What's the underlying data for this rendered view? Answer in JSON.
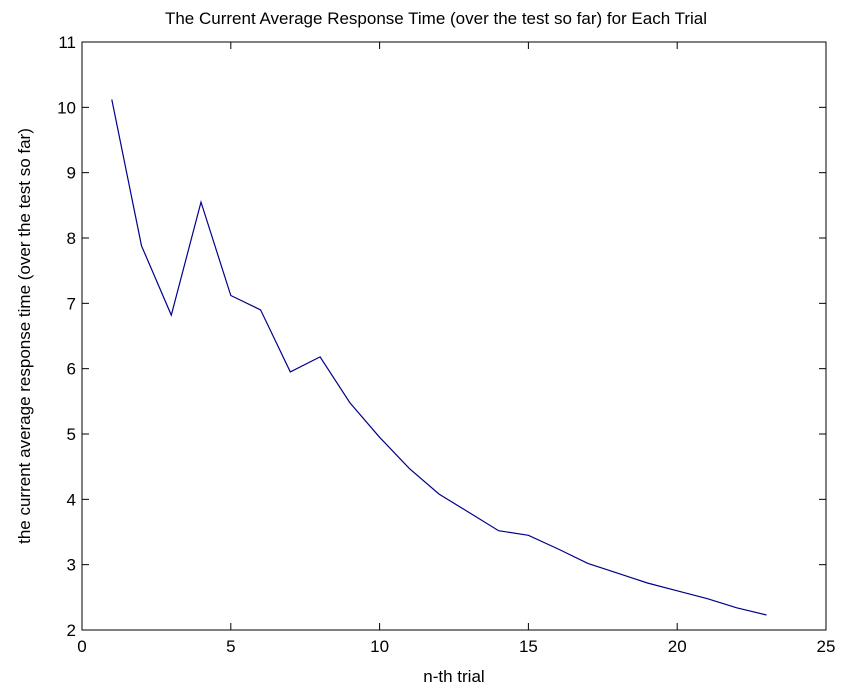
{
  "chart_data": {
    "type": "line",
    "title": "The Current Average Response Time (over the test so far) for Each Trial",
    "xlabel": "n-th trial",
    "ylabel": "the current average response time (over the test so far)",
    "xlim": [
      0,
      25
    ],
    "ylim": [
      2,
      11
    ],
    "xticks": [
      "0",
      "5",
      "10",
      "15",
      "20",
      "25"
    ],
    "yticks": [
      "2",
      "3",
      "4",
      "5",
      "6",
      "7",
      "8",
      "9",
      "10",
      "11"
    ],
    "grid": false,
    "series": [
      {
        "color": "#00008b",
        "x": [
          1,
          2,
          3,
          4,
          5,
          6,
          7,
          8,
          9,
          10,
          11,
          12,
          13,
          14,
          15,
          16,
          17,
          18,
          19,
          20,
          21,
          22,
          23
        ],
        "y": [
          10.12,
          7.88,
          6.82,
          8.55,
          7.12,
          6.9,
          5.95,
          6.18,
          5.48,
          4.95,
          4.47,
          4.08,
          3.8,
          3.52,
          3.45,
          3.24,
          3.02,
          2.87,
          2.72,
          2.6,
          2.48,
          2.34,
          2.23
        ]
      }
    ]
  }
}
